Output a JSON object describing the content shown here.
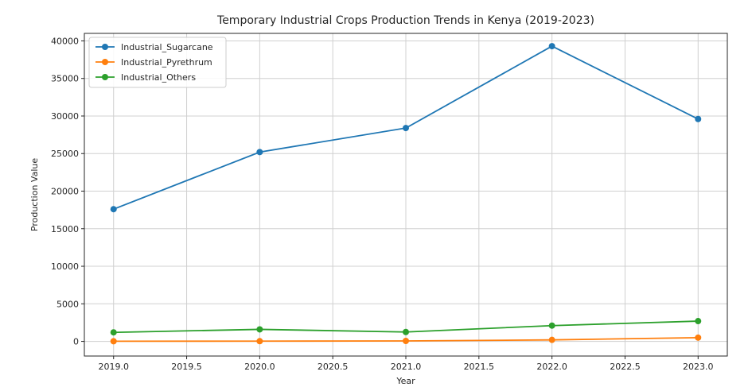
{
  "chart_data": {
    "type": "line",
    "title": "Temporary Industrial Crops Production Trends in Kenya (2019-2023)",
    "xlabel": "Year",
    "ylabel": "Production Value",
    "x": [
      2019,
      2020,
      2021,
      2022,
      2023
    ],
    "xlim": [
      2018.8,
      2023.2
    ],
    "ylim": [
      -1950,
      41000
    ],
    "xticks": [
      "2019.0",
      "2019.5",
      "2020.0",
      "2020.5",
      "2021.0",
      "2021.5",
      "2022.0",
      "2022.5",
      "2023.0"
    ],
    "xtick_values": [
      2019.0,
      2019.5,
      2020.0,
      2020.5,
      2021.0,
      2021.5,
      2022.0,
      2022.5,
      2023.0
    ],
    "yticks": [
      "0",
      "5000",
      "10000",
      "15000",
      "20000",
      "25000",
      "30000",
      "35000",
      "40000"
    ],
    "ytick_values": [
      0,
      5000,
      10000,
      15000,
      20000,
      25000,
      30000,
      35000,
      40000
    ],
    "grid": true,
    "legend_position": "top-left",
    "series": [
      {
        "name": "Industrial_Sugarcane",
        "color": "#1f77b4",
        "values": [
          17600,
          25200,
          28400,
          39300,
          29600
        ]
      },
      {
        "name": "Industrial_Pyrethrum",
        "color": "#ff7f0e",
        "values": [
          20,
          30,
          60,
          200,
          500
        ]
      },
      {
        "name": "Industrial_Others",
        "color": "#2ca02c",
        "values": [
          1200,
          1600,
          1250,
          2100,
          2700
        ]
      }
    ]
  }
}
